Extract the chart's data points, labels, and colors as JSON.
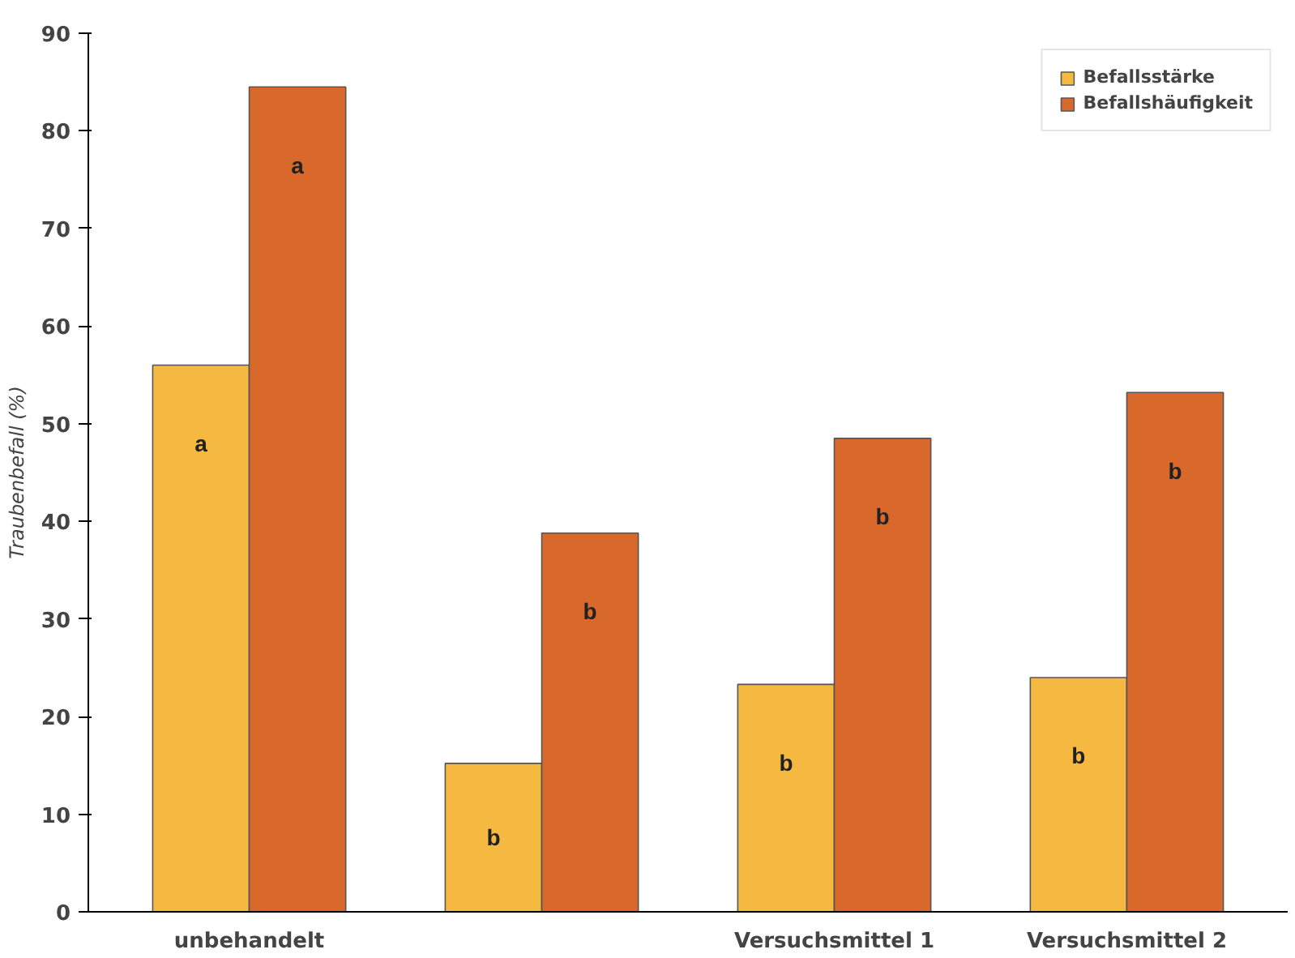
{
  "chart_data": {
    "type": "bar",
    "ylabel": "Traubenbefall (%)",
    "categories": [
      "unbehandelt",
      null,
      "Versuchsmittel 1",
      "Versuchsmittel 2"
    ],
    "series": [
      {
        "name": "Befallsstärke",
        "color": "#f5b942",
        "values": [
          56,
          15.2,
          23.3,
          24
        ],
        "value_labels": [
          "a",
          "b",
          "b",
          "b"
        ]
      },
      {
        "name": "Befallshäufigkeit",
        "color": "#d9692a",
        "values": [
          84.5,
          38.8,
          48.5,
          53.2
        ],
        "value_labels": [
          "a",
          "b",
          "b",
          "b"
        ]
      }
    ],
    "ylim": [
      0,
      90
    ],
    "yticks": [
      0,
      10,
      20,
      30,
      40,
      50,
      60,
      70,
      80,
      90
    ],
    "grid": false,
    "legend": "top right"
  }
}
